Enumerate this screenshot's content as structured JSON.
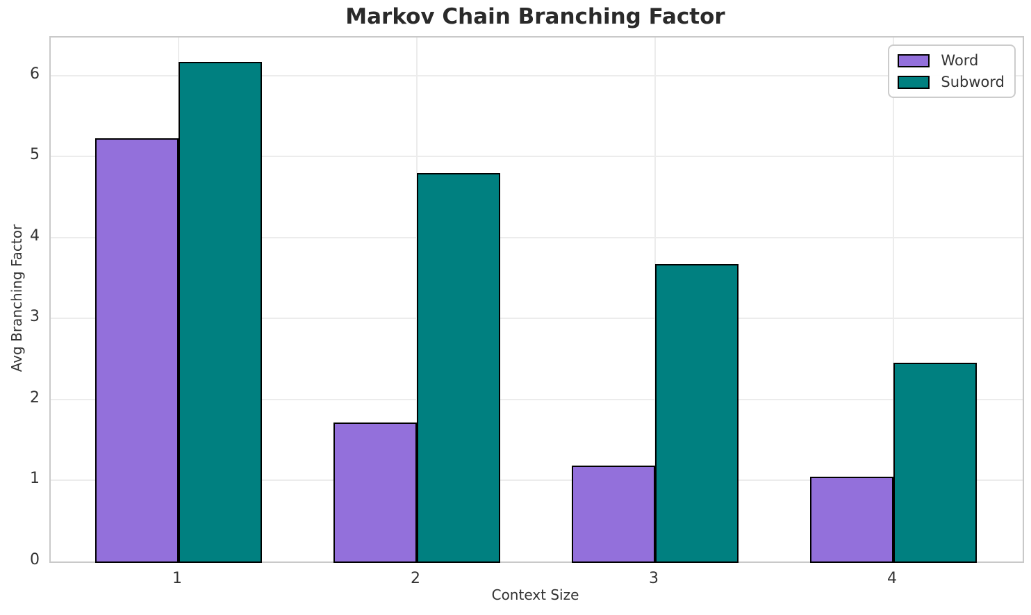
{
  "chart_data": {
    "type": "bar",
    "title": "Markov Chain Branching Factor",
    "xlabel": "Context Size",
    "ylabel": "Avg Branching Factor",
    "categories": [
      "1",
      "2",
      "3",
      "4"
    ],
    "x": [
      1,
      2,
      3,
      4
    ],
    "series": [
      {
        "name": "Word",
        "color": "#9370DB",
        "values": [
          5.23,
          1.72,
          1.18,
          1.05
        ]
      },
      {
        "name": "Subword",
        "color": "#008080",
        "values": [
          6.17,
          4.8,
          3.67,
          2.45
        ]
      }
    ],
    "bar_width": 0.35,
    "edge_color": "#000000",
    "xlim": [
      0.4635,
      4.5423
    ],
    "ylim": [
      0,
      6.47
    ],
    "yticks": [
      0,
      1,
      2,
      3,
      4,
      5,
      6
    ],
    "grid": true,
    "legend_position": "upper right",
    "colors": {
      "background": "#ffffff",
      "grid": "#ececec",
      "spine": "#c9c9c9",
      "text": "#262626"
    }
  }
}
